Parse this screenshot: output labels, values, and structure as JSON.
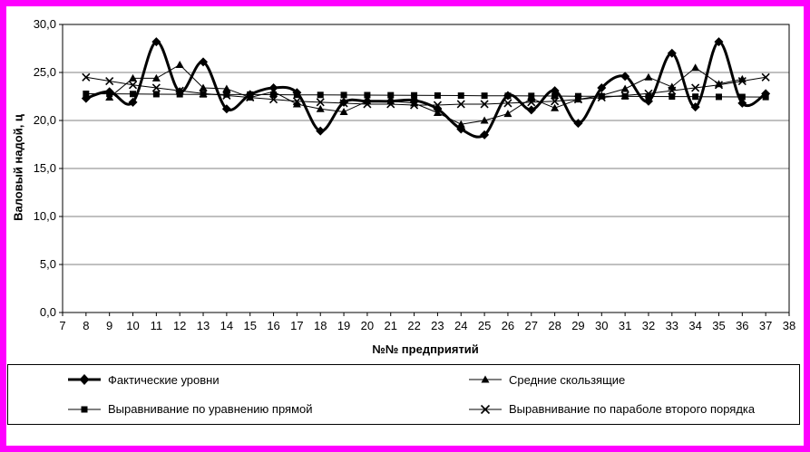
{
  "window": {
    "border_color": "#FF00FF",
    "background_color": "#FFFFFF",
    "series_color": "#000000",
    "gridline_color": "#808080"
  },
  "chart_data": {
    "type": "line",
    "title": "",
    "xlabel": "№№ предприятий",
    "ylabel": "Валовый надой, ц",
    "xlim": [
      7,
      38
    ],
    "ylim": [
      0,
      30
    ],
    "x_ticks": [
      7,
      8,
      9,
      10,
      11,
      12,
      13,
      14,
      15,
      16,
      17,
      18,
      19,
      20,
      21,
      22,
      23,
      24,
      25,
      26,
      27,
      28,
      29,
      30,
      31,
      32,
      33,
      34,
      35,
      36,
      37,
      38
    ],
    "y_tick_values": [
      0,
      5,
      10,
      15,
      20,
      25,
      30
    ],
    "y_tick_labels": [
      "0,0",
      "5,0",
      "10,0",
      "15,0",
      "20,0",
      "25,0",
      "30,0"
    ],
    "grid": "horizontal",
    "legend_position": "bottom-box-two-columns",
    "series": [
      {
        "name": "Фактические уровни",
        "marker": "diamond",
        "line_width": 3,
        "smooth": true,
        "x_start": 8,
        "values": [
          22.3,
          23.0,
          21.9,
          28.2,
          23.0,
          26.1,
          21.2,
          22.7,
          23.4,
          22.9,
          18.9,
          21.9,
          22.0,
          22.0,
          22.1,
          21.2,
          19.1,
          18.5,
          22.6,
          21.1,
          23.1,
          19.7,
          23.4,
          24.6,
          22.0,
          27.0,
          21.4,
          28.2,
          21.8,
          22.8
        ]
      },
      {
        "name": "Средние скользящие",
        "marker": "triangle",
        "line_width": 1,
        "smooth": false,
        "x_start": 9,
        "values": [
          22.4,
          24.4,
          24.4,
          25.8,
          23.4,
          23.3,
          22.4,
          23.0,
          21.7,
          21.2,
          20.9,
          22.0,
          22.0,
          21.8,
          20.8,
          19.6,
          20.0,
          20.7,
          22.3,
          21.3,
          22.2,
          22.6,
          23.3,
          24.5,
          23.5,
          25.5,
          23.8,
          24.3
        ]
      },
      {
        "name": "Выравнивание по уравнению прямой",
        "marker": "square",
        "line_width": 1,
        "smooth": false,
        "x_start": 8,
        "values": [
          22.78,
          22.77,
          22.76,
          22.74,
          22.73,
          22.72,
          22.71,
          22.7,
          22.69,
          22.67,
          22.66,
          22.65,
          22.64,
          22.63,
          22.62,
          22.6,
          22.59,
          22.58,
          22.57,
          22.56,
          22.55,
          22.53,
          22.52,
          22.51,
          22.5,
          22.49,
          22.48,
          22.46,
          22.45,
          22.44
        ]
      },
      {
        "name": "Выравнивание по параболе второго порядка",
        "marker": "x",
        "line_width": 1,
        "smooth": false,
        "x_start": 8,
        "values": [
          24.5,
          24.1,
          23.7,
          23.4,
          23.1,
          22.8,
          22.6,
          22.4,
          22.2,
          22.0,
          21.9,
          21.8,
          21.7,
          21.7,
          21.6,
          21.6,
          21.7,
          21.7,
          21.8,
          21.9,
          22.0,
          22.2,
          22.4,
          22.6,
          22.8,
          23.1,
          23.4,
          23.7,
          24.1,
          24.5
        ]
      }
    ]
  },
  "legend": {
    "items": [
      {
        "label": "Фактические уровни",
        "marker": "diamond"
      },
      {
        "label": "Средние скользящие",
        "marker": "triangle"
      },
      {
        "label": "Выравнивание по уравнению прямой",
        "marker": "square"
      },
      {
        "label": "Выравнивание по параболе второго порядка",
        "marker": "x"
      }
    ]
  }
}
